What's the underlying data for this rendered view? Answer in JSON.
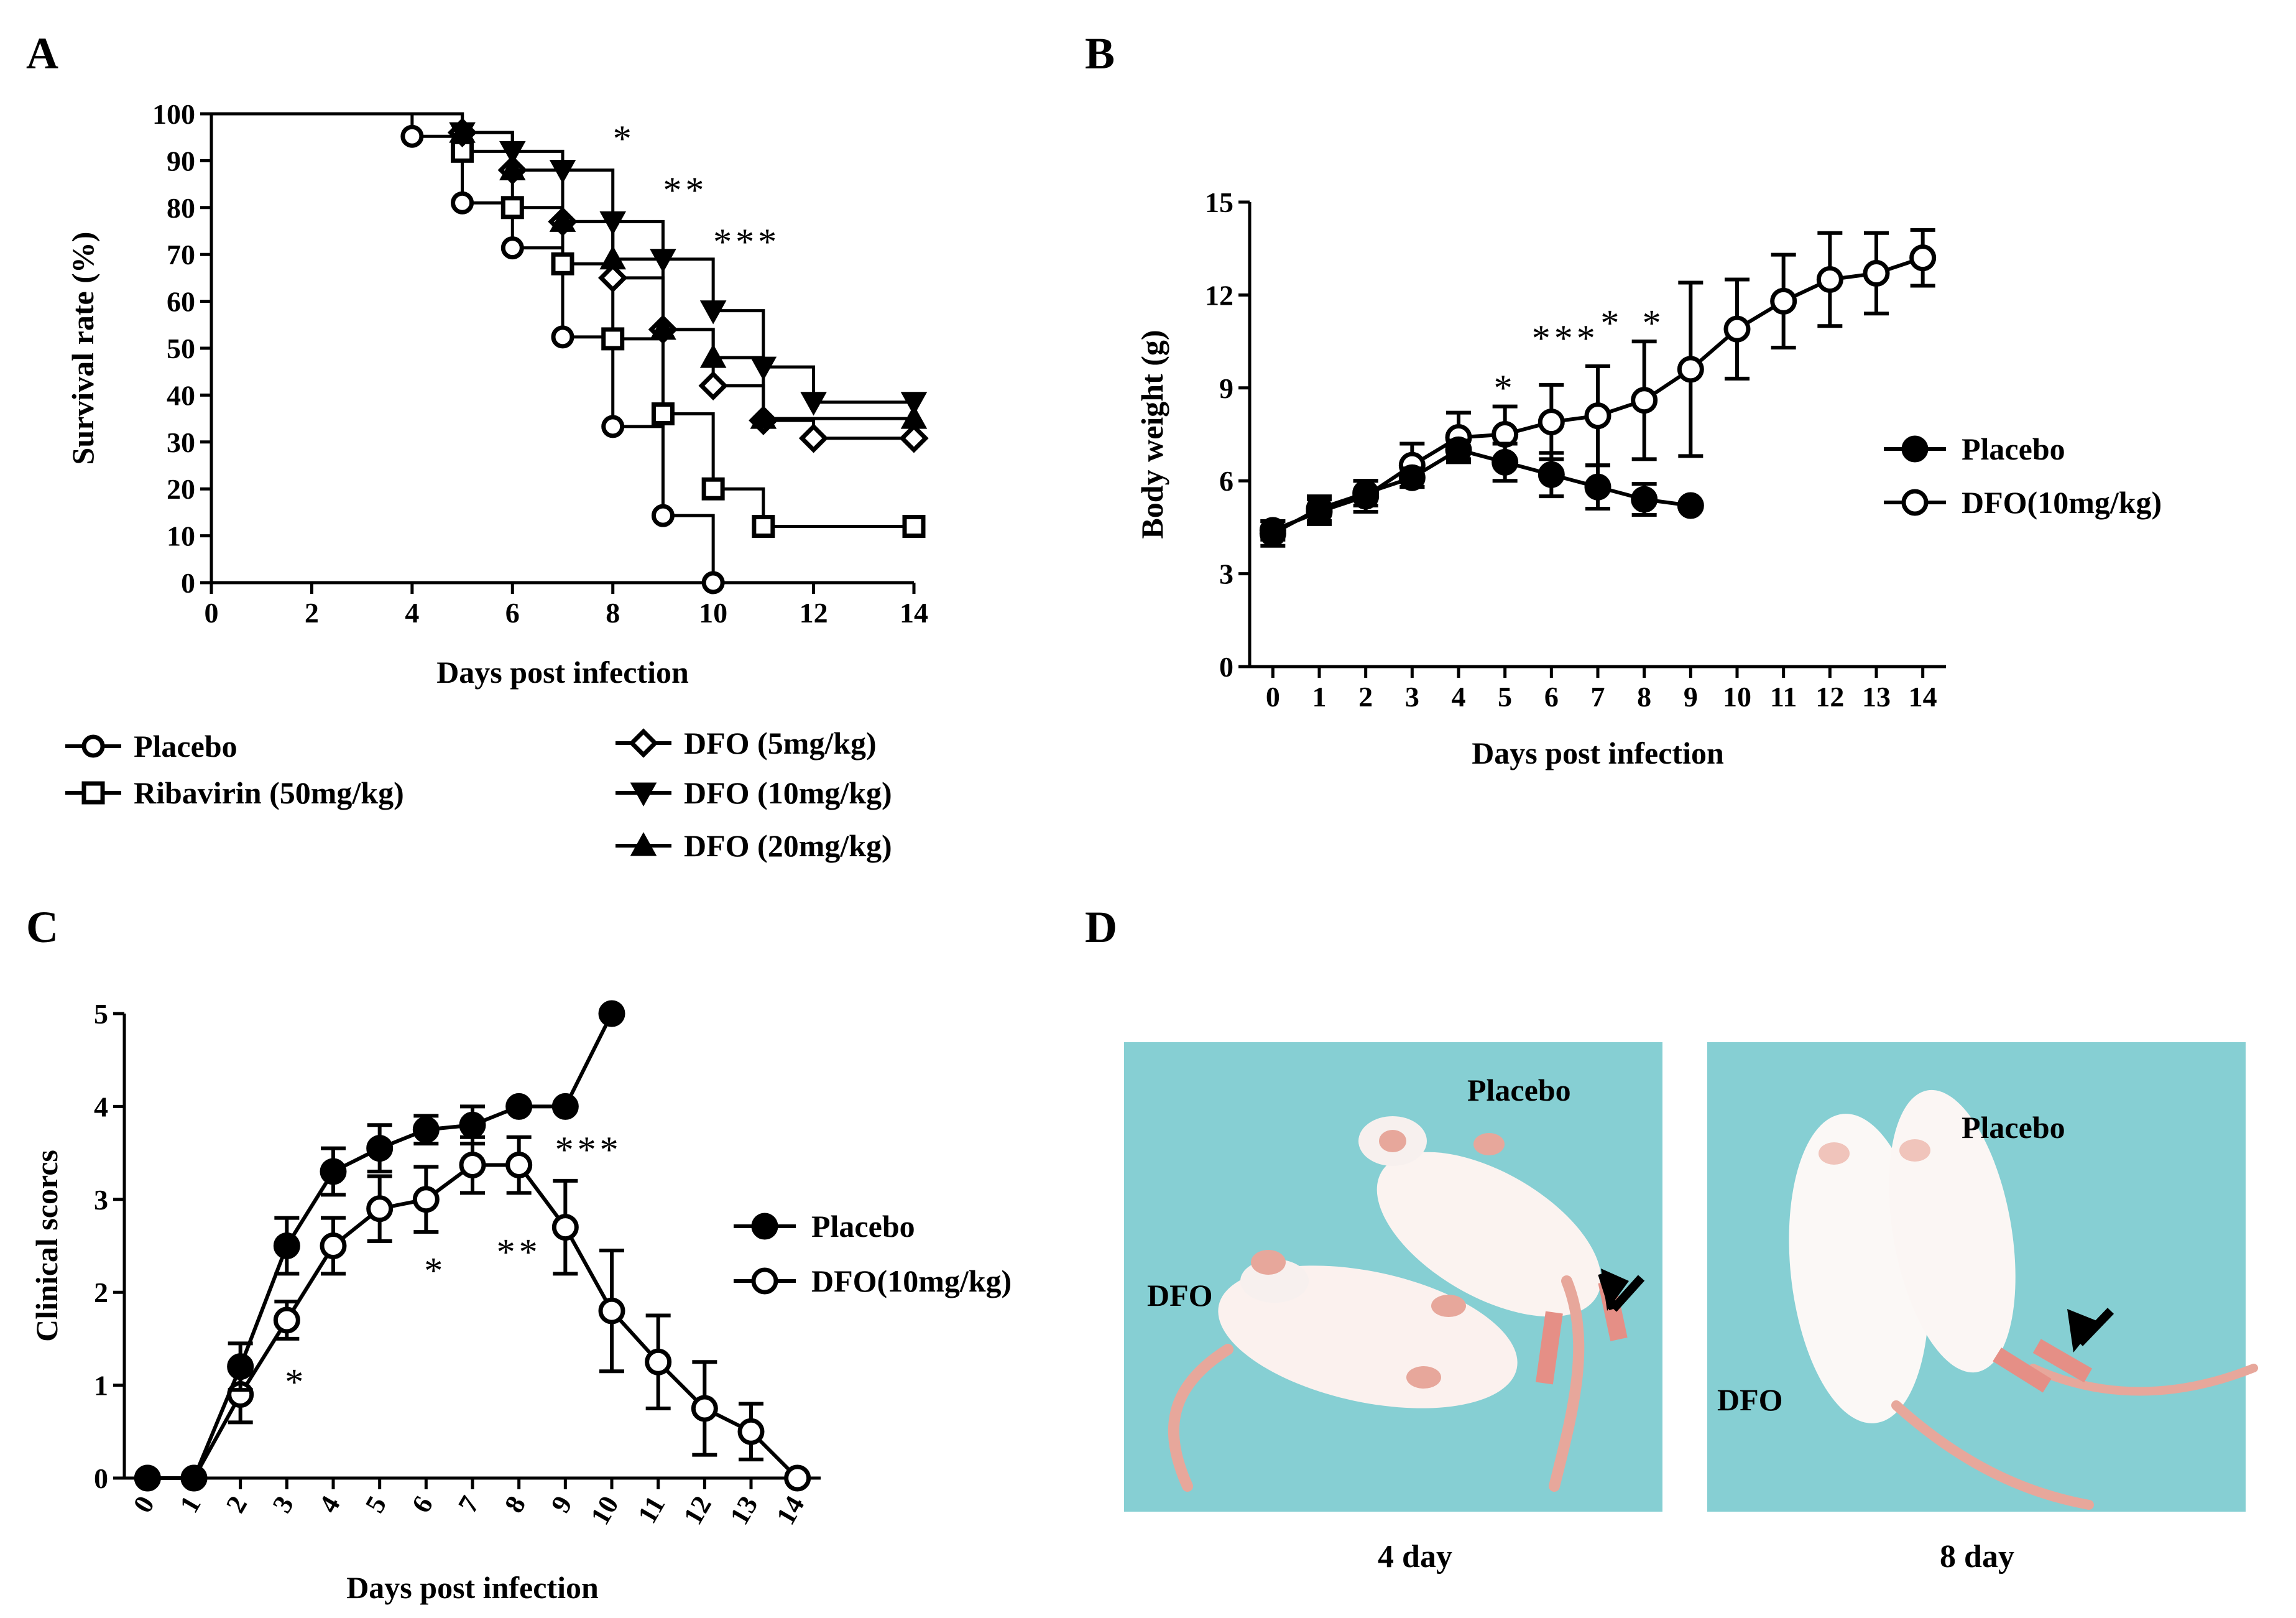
{
  "chart_data": [
    {
      "id": "A",
      "panel_label": "A",
      "type": "line",
      "subtype": "kaplan-meier",
      "title": "",
      "xlabel": "Days post infection",
      "ylabel": "Survival rate (%)",
      "xlim": [
        0,
        14
      ],
      "ylim": [
        0,
        100
      ],
      "xticks": [
        "0",
        "2",
        "4",
        "6",
        "8",
        "10",
        "12",
        "14"
      ],
      "yticks": [
        "0",
        "10",
        "20",
        "30",
        "40",
        "50",
        "60",
        "70",
        "80",
        "90",
        "100"
      ],
      "series": [
        {
          "name": "Placebo",
          "marker": "circle-open",
          "x": [
            0,
            4,
            5,
            6,
            7,
            8,
            9,
            10
          ],
          "y": [
            100,
            95.2,
            81,
            71.4,
            52.4,
            33.3,
            14.3,
            0
          ]
        },
        {
          "name": "Ribavirin (50mg/kg)",
          "marker": "square-open",
          "x": [
            0,
            5,
            6,
            7,
            8,
            9,
            10,
            11,
            14
          ],
          "y": [
            100,
            92,
            80,
            68,
            52,
            36,
            20,
            12,
            12
          ]
        },
        {
          "name": "DFO (5mg/kg)",
          "marker": "diamond-open",
          "x": [
            0,
            5,
            6,
            7,
            8,
            9,
            10,
            11,
            12,
            14
          ],
          "y": [
            100,
            96,
            88,
            77,
            65,
            54,
            42,
            34.6,
            30.8,
            30.8
          ]
        },
        {
          "name": "DFO (10mg/kg)",
          "marker": "triangle-down",
          "x": [
            0,
            5,
            6,
            7,
            8,
            9,
            10,
            11,
            12,
            14
          ],
          "y": [
            100,
            96,
            92,
            88,
            77,
            69,
            58,
            46,
            38.5,
            38.5
          ]
        },
        {
          "name": "DFO (20mg/kg)",
          "marker": "triangle-up",
          "x": [
            0,
            5,
            6,
            7,
            8,
            9,
            10,
            11,
            14
          ],
          "y": [
            100,
            96,
            88,
            77,
            69,
            54,
            48,
            35,
            35
          ]
        }
      ],
      "annotations": [
        {
          "text": "*",
          "x": 8.0,
          "y": 96
        },
        {
          "text": "**",
          "x": 9.0,
          "y": 85
        },
        {
          "text": "***",
          "x": 10.0,
          "y": 74
        }
      ]
    },
    {
      "id": "B",
      "panel_label": "B",
      "type": "line",
      "title": "",
      "xlabel": "Days post infection",
      "ylabel": "Body weight (g)",
      "xlim": [
        -0.5,
        14.5
      ],
      "ylim": [
        0,
        15
      ],
      "xticks": [
        "0",
        "1",
        "2",
        "3",
        "4",
        "5",
        "6",
        "7",
        "8",
        "9",
        "10",
        "11",
        "12",
        "13",
        "14"
      ],
      "yticks": [
        "0",
        "3",
        "6",
        "9",
        "12",
        "15"
      ],
      "series": [
        {
          "name": "Placebo",
          "marker": "circle-filled",
          "x": [
            0,
            1,
            2,
            3,
            4,
            5,
            6,
            7,
            8,
            9
          ],
          "y": [
            4.3,
            5.1,
            5.6,
            6.1,
            7.0,
            6.6,
            6.2,
            5.8,
            5.4,
            5.2
          ],
          "err": [
            0.4,
            0.4,
            0.4,
            0.3,
            0.3,
            0.6,
            0.7,
            0.7,
            0.5,
            0
          ]
        },
        {
          "name": "DFO(10mg/kg)",
          "marker": "circle-open",
          "x": [
            0,
            1,
            2,
            3,
            4,
            5,
            6,
            7,
            8,
            9,
            10,
            11,
            12,
            13,
            14
          ],
          "y": [
            4.4,
            5.0,
            5.5,
            6.5,
            7.4,
            7.5,
            7.9,
            8.1,
            8.6,
            9.6,
            10.9,
            11.8,
            12.5,
            12.7,
            13.2
          ],
          "err": [
            0.3,
            0.4,
            0.5,
            0.7,
            0.8,
            0.9,
            1.2,
            1.6,
            1.9,
            2.8,
            1.6,
            1.5,
            1.5,
            1.3,
            0.9
          ]
        }
      ],
      "annotations": [
        {
          "text": "*",
          "x": 5,
          "y": 9.2
        },
        {
          "text": "***",
          "x": 6.3,
          "y": 10.8
        },
        {
          "text": "*",
          "x": 7.3,
          "y": 11.3
        },
        {
          "text": "*",
          "x": 8.2,
          "y": 11.3
        }
      ]
    },
    {
      "id": "C",
      "panel_label": "C",
      "type": "line",
      "title": "",
      "xlabel": "Days post infection",
      "ylabel": "Clinical scorcs",
      "xlim": [
        -0.5,
        14.5
      ],
      "ylim": [
        0,
        5
      ],
      "xticks": [
        "0",
        "1",
        "2",
        "3",
        "4",
        "5",
        "6",
        "7",
        "8",
        "9",
        "10",
        "11",
        "12",
        "13",
        "14"
      ],
      "yticks": [
        "0",
        "1",
        "2",
        "3",
        "4",
        "5"
      ],
      "series": [
        {
          "name": "Placebo",
          "marker": "circle-filled",
          "x": [
            0,
            1,
            2,
            3,
            4,
            5,
            6,
            7,
            8,
            9,
            10
          ],
          "y": [
            0,
            0,
            1.2,
            2.5,
            3.3,
            3.55,
            3.75,
            3.8,
            4.0,
            4.0,
            5.0
          ],
          "err": [
            0,
            0,
            0.25,
            0.3,
            0.25,
            0.25,
            0.15,
            0.2,
            0,
            0,
            0
          ]
        },
        {
          "name": "DFO(10mg/kg)",
          "marker": "circle-open",
          "x": [
            0,
            1,
            2,
            3,
            4,
            5,
            6,
            7,
            8,
            9,
            10,
            11,
            12,
            13,
            14
          ],
          "y": [
            0,
            0,
            0.9,
            1.7,
            2.5,
            2.9,
            3.0,
            3.37,
            3.37,
            2.7,
            1.8,
            1.25,
            0.75,
            0.5,
            0
          ],
          "err": [
            0,
            0,
            0.3,
            0.2,
            0.3,
            0.35,
            0.35,
            0.3,
            0.3,
            0.5,
            0.65,
            0.5,
            0.5,
            0.3,
            0
          ]
        }
      ],
      "annotations": [
        {
          "text": "*",
          "x": 3.2,
          "y": 1.1
        },
        {
          "text": "*",
          "x": 6.2,
          "y": 2.3
        },
        {
          "text": "**",
          "x": 8.0,
          "y": 2.5
        },
        {
          "text": "***",
          "x": 9.5,
          "y": 3.6
        }
      ]
    }
  ],
  "panels": {
    "A": {
      "label": "A"
    },
    "B": {
      "label": "B"
    },
    "C": {
      "label": "C"
    },
    "D": {
      "label": "D"
    }
  },
  "photos": {
    "left": {
      "caption": "4 day",
      "label_placebo": "Placebo",
      "label_dfo": "DFO",
      "bg_color": "#86cfd3"
    },
    "right": {
      "caption": "8 day",
      "label_placebo": "Placebo",
      "label_dfo": "DFO",
      "bg_color": "#86cfd3"
    }
  }
}
